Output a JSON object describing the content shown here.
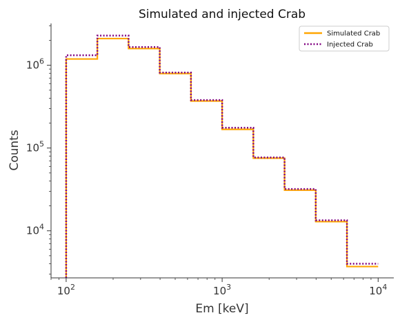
{
  "chart_data": {
    "type": "line",
    "drawstyle": "steps",
    "title": "Simulated and injected Crab",
    "xlabel": "Em [keV]",
    "ylabel": "Counts",
    "xscale": "log",
    "yscale": "log",
    "xlim": [
      80,
      12600
    ],
    "ylim": [
      2700,
      3200000
    ],
    "bin_edges": [
      100,
      158.5,
      251.2,
      398.1,
      631,
      1000,
      1585,
      2512,
      3981,
      6310,
      10000
    ],
    "series": [
      {
        "name": "Simulated Crab",
        "color": "#ffa500",
        "linestyle": "solid",
        "values": [
          1190000,
          2100000,
          1590000,
          795000,
          370000,
          168000,
          75500,
          31000,
          12900,
          3700
        ]
      },
      {
        "name": "Injected Crab",
        "color": "#800080",
        "linestyle": "dotted",
        "values": [
          1320000,
          2280000,
          1660000,
          815000,
          380000,
          176000,
          77000,
          32000,
          13400,
          4000
        ]
      }
    ],
    "xticks": [
      {
        "value": 100,
        "base": "10",
        "exp": "2"
      },
      {
        "value": 1000,
        "base": "10",
        "exp": "3"
      },
      {
        "value": 10000,
        "base": "10",
        "exp": "4"
      }
    ],
    "yticks": [
      {
        "value": 10000,
        "base": "10",
        "exp": "4"
      },
      {
        "value": 100000,
        "base": "10",
        "exp": "5"
      },
      {
        "value": 1000000,
        "base": "10",
        "exp": "6"
      }
    ],
    "legend_position": "top-right",
    "grid": false
  }
}
